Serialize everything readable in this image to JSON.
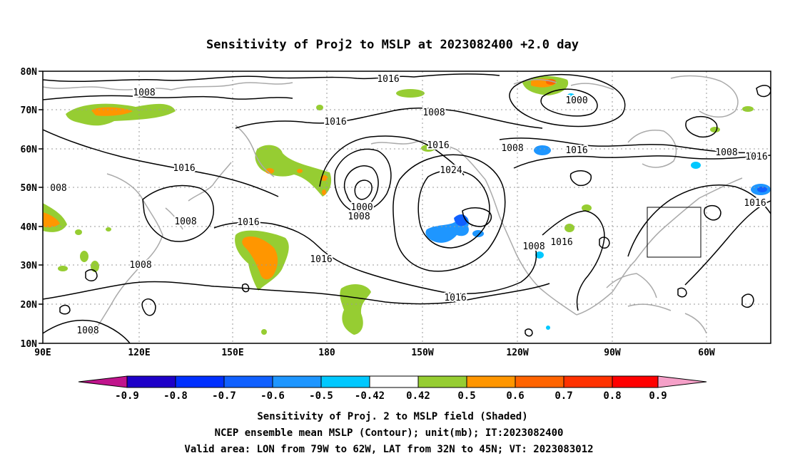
{
  "title": "Sensitivity of Proj2 to MSLP at 2023082400 +2.0 day",
  "map": {
    "lat_labels": [
      "80N",
      "70N",
      "60N",
      "50N",
      "40N",
      "30N",
      "20N",
      "10N"
    ],
    "lon_labels": [
      "90E",
      "120E",
      "150E",
      "180",
      "150W",
      "120W",
      "90W",
      "60W"
    ],
    "contour_labels": [
      {
        "text": "1008"
      },
      {
        "text": "1016"
      },
      {
        "text": "1016"
      },
      {
        "text": "1008"
      },
      {
        "text": "1016"
      },
      {
        "text": "1024"
      },
      {
        "text": "1000"
      },
      {
        "text": "1008"
      },
      {
        "text": "1016"
      },
      {
        "text": "1008"
      },
      {
        "text": "1016"
      },
      {
        "text": "1008"
      },
      {
        "text": "1016"
      },
      {
        "text": "1008"
      },
      {
        "text": "1008"
      },
      {
        "text": "1008"
      },
      {
        "text": "1016"
      },
      {
        "text": "1016"
      },
      {
        "text": "1000"
      },
      {
        "text": "1008"
      },
      {
        "text": "1016"
      },
      {
        "text": "008"
      },
      {
        "text": "1016"
      },
      {
        "text": "1016"
      }
    ],
    "valid_area": {
      "lon": [
        -79,
        -62
      ],
      "lat": [
        32,
        45
      ]
    },
    "colors": {
      "contour": "#000000",
      "coastline": "#aaaaaa",
      "grid": "#999999"
    }
  },
  "colorbar": {
    "labels": [
      "-0.9",
      "-0.8",
      "-0.7",
      "-0.6",
      "-0.5",
      "-0.42",
      "0.42",
      "0.5",
      "0.6",
      "0.7",
      "0.8",
      "0.9"
    ],
    "colors": [
      "#c0148c",
      "#1e00c8",
      "#0030ff",
      "#1060ff",
      "#1e96ff",
      "#00c8ff",
      "#ffffff",
      "#96cd32",
      "#ff9600",
      "#ff6400",
      "#ff3200",
      "#ff0000",
      "#f5a0c8"
    ]
  },
  "footer": {
    "line1": "Sensitivity of Proj. 2 to MSLP field (Shaded)",
    "line2": "NCEP ensemble mean MSLP (Contour); unit(mb); IT:2023082400",
    "line3": "Valid area: LON from 79W to 62W, LAT from 32N to 45N; VT: 2023083012"
  }
}
